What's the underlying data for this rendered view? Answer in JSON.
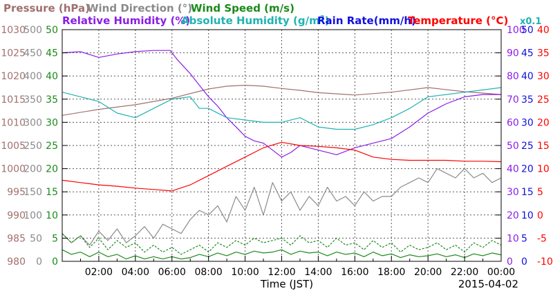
{
  "chart_data": {
    "type": "line",
    "xlabel": "Time (JST)",
    "date_label": "2015-04-02",
    "x_range": [
      "00:00",
      "24:00"
    ],
    "x_ticks": [
      "02:00",
      "04:00",
      "06:00",
      "08:00",
      "10:00",
      "12:00",
      "14:00",
      "16:00",
      "18:00",
      "20:00",
      "22:00",
      "00:00"
    ],
    "grid": true,
    "legend": [
      {
        "text": "Pressure (hPa)",
        "color": "#a0706e"
      },
      {
        "text": "Wind Direction (°)",
        "color": "#8a8a8a"
      },
      {
        "text": "Wind Speed (m/s)",
        "color": "#1a8a1a"
      },
      {
        "text": "Relative Humidity (%)",
        "color": "#8a1ee8"
      },
      {
        "text": "Absolute Humidity (g/m",
        "sup": "3",
        "close": ")",
        "color": "#20b2b2"
      },
      {
        "text": "Rain Rate(mm/h)",
        "color": "#1010e0"
      },
      {
        "text": "Temperature (°C)",
        "color": "#ff0000"
      },
      {
        "text": "x0.1",
        "color": "#20b2b2"
      }
    ],
    "axes": [
      {
        "name": "pressure",
        "unit": "hPa",
        "color": "#a0706e",
        "range": [
          980,
          1030
        ],
        "ticks": [
          "980",
          "985",
          "990",
          "995",
          "1000",
          "1005",
          "1010",
          "1015",
          "1020",
          "1025",
          "1030"
        ]
      },
      {
        "name": "wind_direction",
        "unit": "°",
        "color": "#8a8a8a",
        "range": [
          0,
          500
        ],
        "ticks": [
          "0",
          "50",
          "100",
          "150",
          "200",
          "250",
          "300",
          "350",
          "400",
          "450",
          "500"
        ]
      },
      {
        "name": "wind_speed",
        "unit": "m/s",
        "color": "#1a8a1a",
        "range": [
          0,
          50
        ],
        "ticks": [
          "0",
          "5",
          "10",
          "15",
          "20",
          "25",
          "30",
          "35",
          "40",
          "45",
          "50"
        ]
      },
      {
        "name": "humidity",
        "unit": "%",
        "color": "#8a1ee8",
        "range": [
          0,
          100
        ],
        "ticks": [
          "0",
          "10",
          "20",
          "30",
          "40",
          "50",
          "60",
          "70",
          "80",
          "90",
          "100"
        ]
      },
      {
        "name": "rain_rate",
        "unit": "mm/h",
        "color": "#1010e0",
        "range": [
          0,
          50
        ],
        "ticks": [
          "0",
          "5",
          "10",
          "15",
          "20",
          "25",
          "30",
          "35",
          "40",
          "45",
          "50"
        ]
      },
      {
        "name": "temperature",
        "unit": "°C",
        "color": "#ff0000",
        "range": [
          -10,
          40
        ],
        "ticks": [
          "-10",
          "-5",
          "0",
          "5",
          "10",
          "15",
          "20",
          "25",
          "30",
          "35",
          "40"
        ]
      }
    ],
    "series": [
      {
        "name": "Pressure (hPa)",
        "axis": "pressure",
        "color": "#a0706e",
        "x": [
          0,
          2,
          4,
          6,
          8,
          9,
          10,
          11,
          12,
          13,
          14,
          16,
          18,
          20,
          22,
          24
        ],
        "y": [
          1011.5,
          1012.8,
          1013.8,
          1015.2,
          1017.2,
          1017.8,
          1018.0,
          1017.8,
          1017.3,
          1016.9,
          1016.4,
          1015.9,
          1016.5,
          1017.5,
          1016.6,
          1016.0
        ]
      },
      {
        "name": "Relative Humidity (%)",
        "axis": "humidity",
        "color": "#8a1ee8",
        "x": [
          0,
          1,
          2,
          3,
          4,
          5,
          5.9,
          6.3,
          7,
          7.5,
          8,
          8.5,
          9,
          9.5,
          10,
          10.5,
          11,
          11.5,
          12,
          12.5,
          13,
          13.5,
          14,
          15,
          16,
          17,
          18,
          19,
          20,
          21,
          22,
          23,
          24
        ],
        "y": [
          90,
          90.5,
          88,
          89.5,
          90.5,
          91,
          91,
          87,
          81,
          76,
          71,
          67,
          62,
          58,
          54,
          52,
          51,
          48,
          45,
          47,
          50,
          49,
          48,
          46,
          49,
          51,
          53,
          58,
          64,
          68,
          71,
          72,
          72
        ]
      },
      {
        "name": "Absolute Humidity (g/m3)",
        "axis": "wind_speed",
        "color": "#20b2b2",
        "x": [
          0,
          1,
          2,
          3,
          4,
          5,
          6,
          7,
          7.5,
          8,
          9,
          10,
          11,
          12,
          13,
          14,
          15,
          16,
          17,
          18,
          19,
          20,
          21,
          22,
          23,
          24
        ],
        "y": [
          36.5,
          35.5,
          34.5,
          32,
          31,
          33,
          35,
          35.5,
          33,
          33,
          31,
          30.5,
          30,
          30,
          31,
          29,
          28.5,
          28.5,
          29.5,
          31,
          33,
          35.5,
          36,
          36.5,
          37,
          37.5
        ]
      },
      {
        "name": "Temperature (°C)",
        "axis": "temperature",
        "color": "#ff0000",
        "x": [
          0,
          1,
          2,
          3,
          4,
          5,
          6,
          7,
          8,
          9,
          10,
          11,
          12,
          13,
          14,
          15,
          16,
          17,
          18,
          19,
          20,
          21,
          22,
          23,
          24
        ],
        "y": [
          7.5,
          7.0,
          6.5,
          6.2,
          5.8,
          5.5,
          5.2,
          6.5,
          8.5,
          10.5,
          12.5,
          14.5,
          15.7,
          15.0,
          14.8,
          14.5,
          14.0,
          12.5,
          12.0,
          11.8,
          11.8,
          11.8,
          11.6,
          11.6,
          11.5
        ]
      },
      {
        "name": "Wind Direction (°)",
        "axis": "wind_direction",
        "color": "#8a8a8a",
        "x": [
          0,
          0.5,
          1,
          1.5,
          2,
          2.5,
          3,
          3.5,
          4,
          4.5,
          5,
          5.5,
          6,
          6.5,
          7,
          7.5,
          8,
          8.5,
          9,
          9.5,
          10,
          10.5,
          11,
          11.5,
          12,
          12.5,
          13,
          13.5,
          14,
          14.5,
          15,
          15.5,
          16,
          16.5,
          17,
          17.5,
          18,
          18.5,
          19,
          19.5,
          20,
          20.5,
          21,
          21.5,
          22,
          22.5,
          23,
          23.5,
          24
        ],
        "y": [
          60,
          40,
          55,
          35,
          65,
          45,
          70,
          40,
          55,
          75,
          50,
          80,
          70,
          60,
          90,
          110,
          100,
          120,
          85,
          140,
          110,
          160,
          100,
          170,
          130,
          150,
          110,
          140,
          120,
          160,
          130,
          140,
          120,
          150,
          130,
          140,
          140,
          160,
          170,
          180,
          170,
          200,
          190,
          180,
          200,
          180,
          190,
          170,
          180
        ]
      },
      {
        "name": "Wind Speed (m/s)",
        "axis": "wind_speed",
        "color": "#1a8a1a",
        "dashed": true,
        "x": [
          0,
          0.5,
          1,
          1.5,
          2,
          2.5,
          3,
          3.5,
          4,
          4.5,
          5,
          5.5,
          6,
          6.5,
          7,
          7.5,
          8,
          8.5,
          9,
          9.5,
          10,
          10.5,
          11,
          11.5,
          12,
          12.5,
          13,
          13.5,
          14,
          14.5,
          15,
          15.5,
          16,
          16.5,
          17,
          17.5,
          18,
          18.5,
          19,
          19.5,
          20,
          20.5,
          21,
          21.5,
          22,
          22.5,
          23,
          23.5,
          24
        ],
        "y": [
          6,
          4,
          5.5,
          3,
          5,
          2.5,
          4.5,
          3,
          4,
          2,
          3.5,
          2,
          3,
          1.5,
          2.5,
          3.5,
          2,
          4,
          3,
          4.5,
          3.5,
          5,
          4,
          4.5,
          5,
          3.5,
          5.5,
          4,
          4.5,
          3,
          5,
          3.5,
          4,
          2.5,
          4.5,
          3,
          4,
          2,
          3.5,
          2.5,
          3,
          4,
          2.5,
          3.5,
          2,
          4,
          3,
          4.5,
          3.5
        ]
      },
      {
        "name": "Wind Speed (m/s) ",
        "axis": "wind_speed",
        "color": "#1a8a1a",
        "x": [
          0,
          0.5,
          1,
          1.5,
          2,
          2.5,
          3,
          3.5,
          4,
          4.5,
          5,
          5.5,
          6,
          6.5,
          7,
          7.5,
          8,
          8.5,
          9,
          9.5,
          10,
          10.5,
          11,
          11.5,
          12,
          12.5,
          13,
          13.5,
          14,
          14.5,
          15,
          15.5,
          16,
          16.5,
          17,
          17.5,
          18,
          18.5,
          19,
          19.5,
          20,
          20.5,
          21,
          21.5,
          22,
          22.5,
          23,
          23.5,
          24
        ],
        "y": [
          2.5,
          1.5,
          2,
          1,
          2,
          1,
          1.5,
          0.5,
          1.2,
          0.5,
          1,
          0.5,
          1,
          0.5,
          0.8,
          1.5,
          1,
          1.8,
          1.2,
          2,
          1.5,
          2.2,
          1.8,
          2,
          2.5,
          1.5,
          2.2,
          1.8,
          2,
          1.2,
          2,
          1.5,
          1.8,
          1,
          2,
          1.2,
          1.6,
          0.8,
          1.4,
          1,
          1.2,
          1.6,
          1,
          1.4,
          0.8,
          1.6,
          1.2,
          1.8,
          1.4
        ]
      }
    ]
  }
}
